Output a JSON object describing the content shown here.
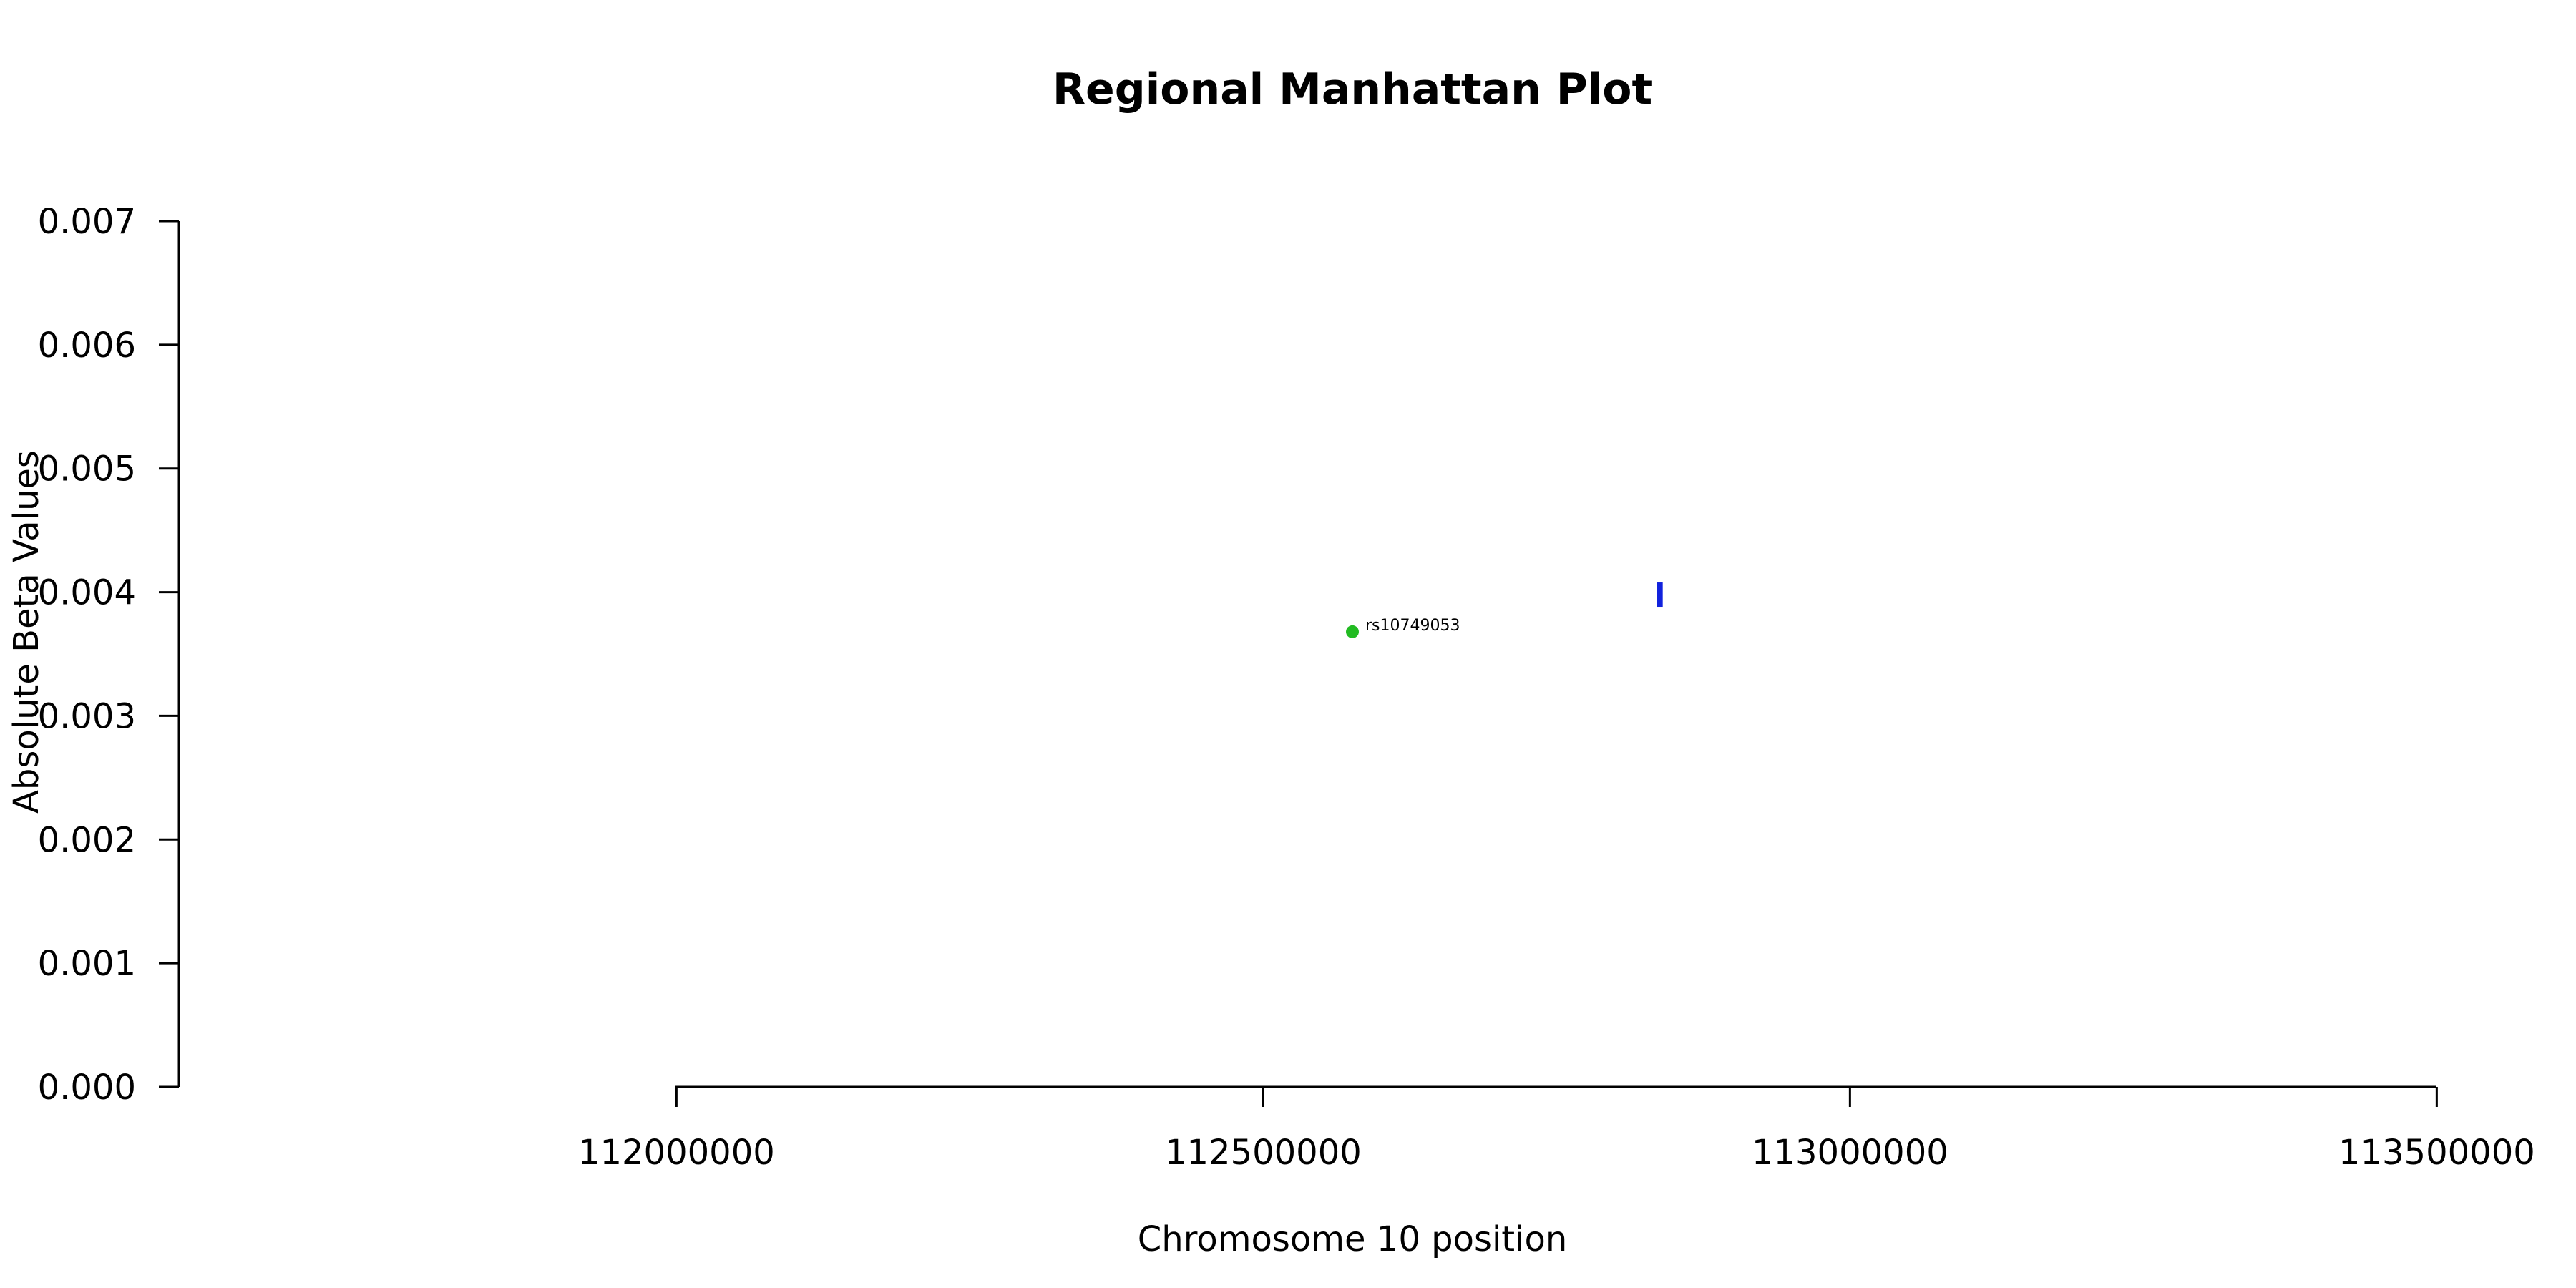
{
  "chart_data": {
    "type": "scatter",
    "title": "Regional Manhattan Plot",
    "xlabel": "Chromosome 10 position",
    "ylabel": "Absolute Beta Values",
    "xlim": [
      111576000,
      113576000
    ],
    "ylim": [
      0,
      0.007
    ],
    "x_ticks": [
      112000000,
      112500000,
      113000000,
      113500000
    ],
    "x_tick_labels": [
      "112000000",
      "112500000",
      "113000000",
      "113500000"
    ],
    "y_ticks": [
      0,
      0.001,
      0.002,
      0.003,
      0.004,
      0.005,
      0.006,
      0.007
    ],
    "y_tick_labels": [
      "0.000",
      "0.001",
      "0.002",
      "0.003",
      "0.004",
      "0.005",
      "0.006",
      "0.007"
    ],
    "grid": false,
    "points": [
      {
        "x": 112576000,
        "y": 0.00368,
        "label": "rs10749053",
        "color": "#22bb22",
        "marker": "circle"
      }
    ],
    "markers": [
      {
        "x": 112838000,
        "y": 0.00398,
        "color": "#1122dd",
        "marker": "vertical-bar"
      }
    ]
  }
}
